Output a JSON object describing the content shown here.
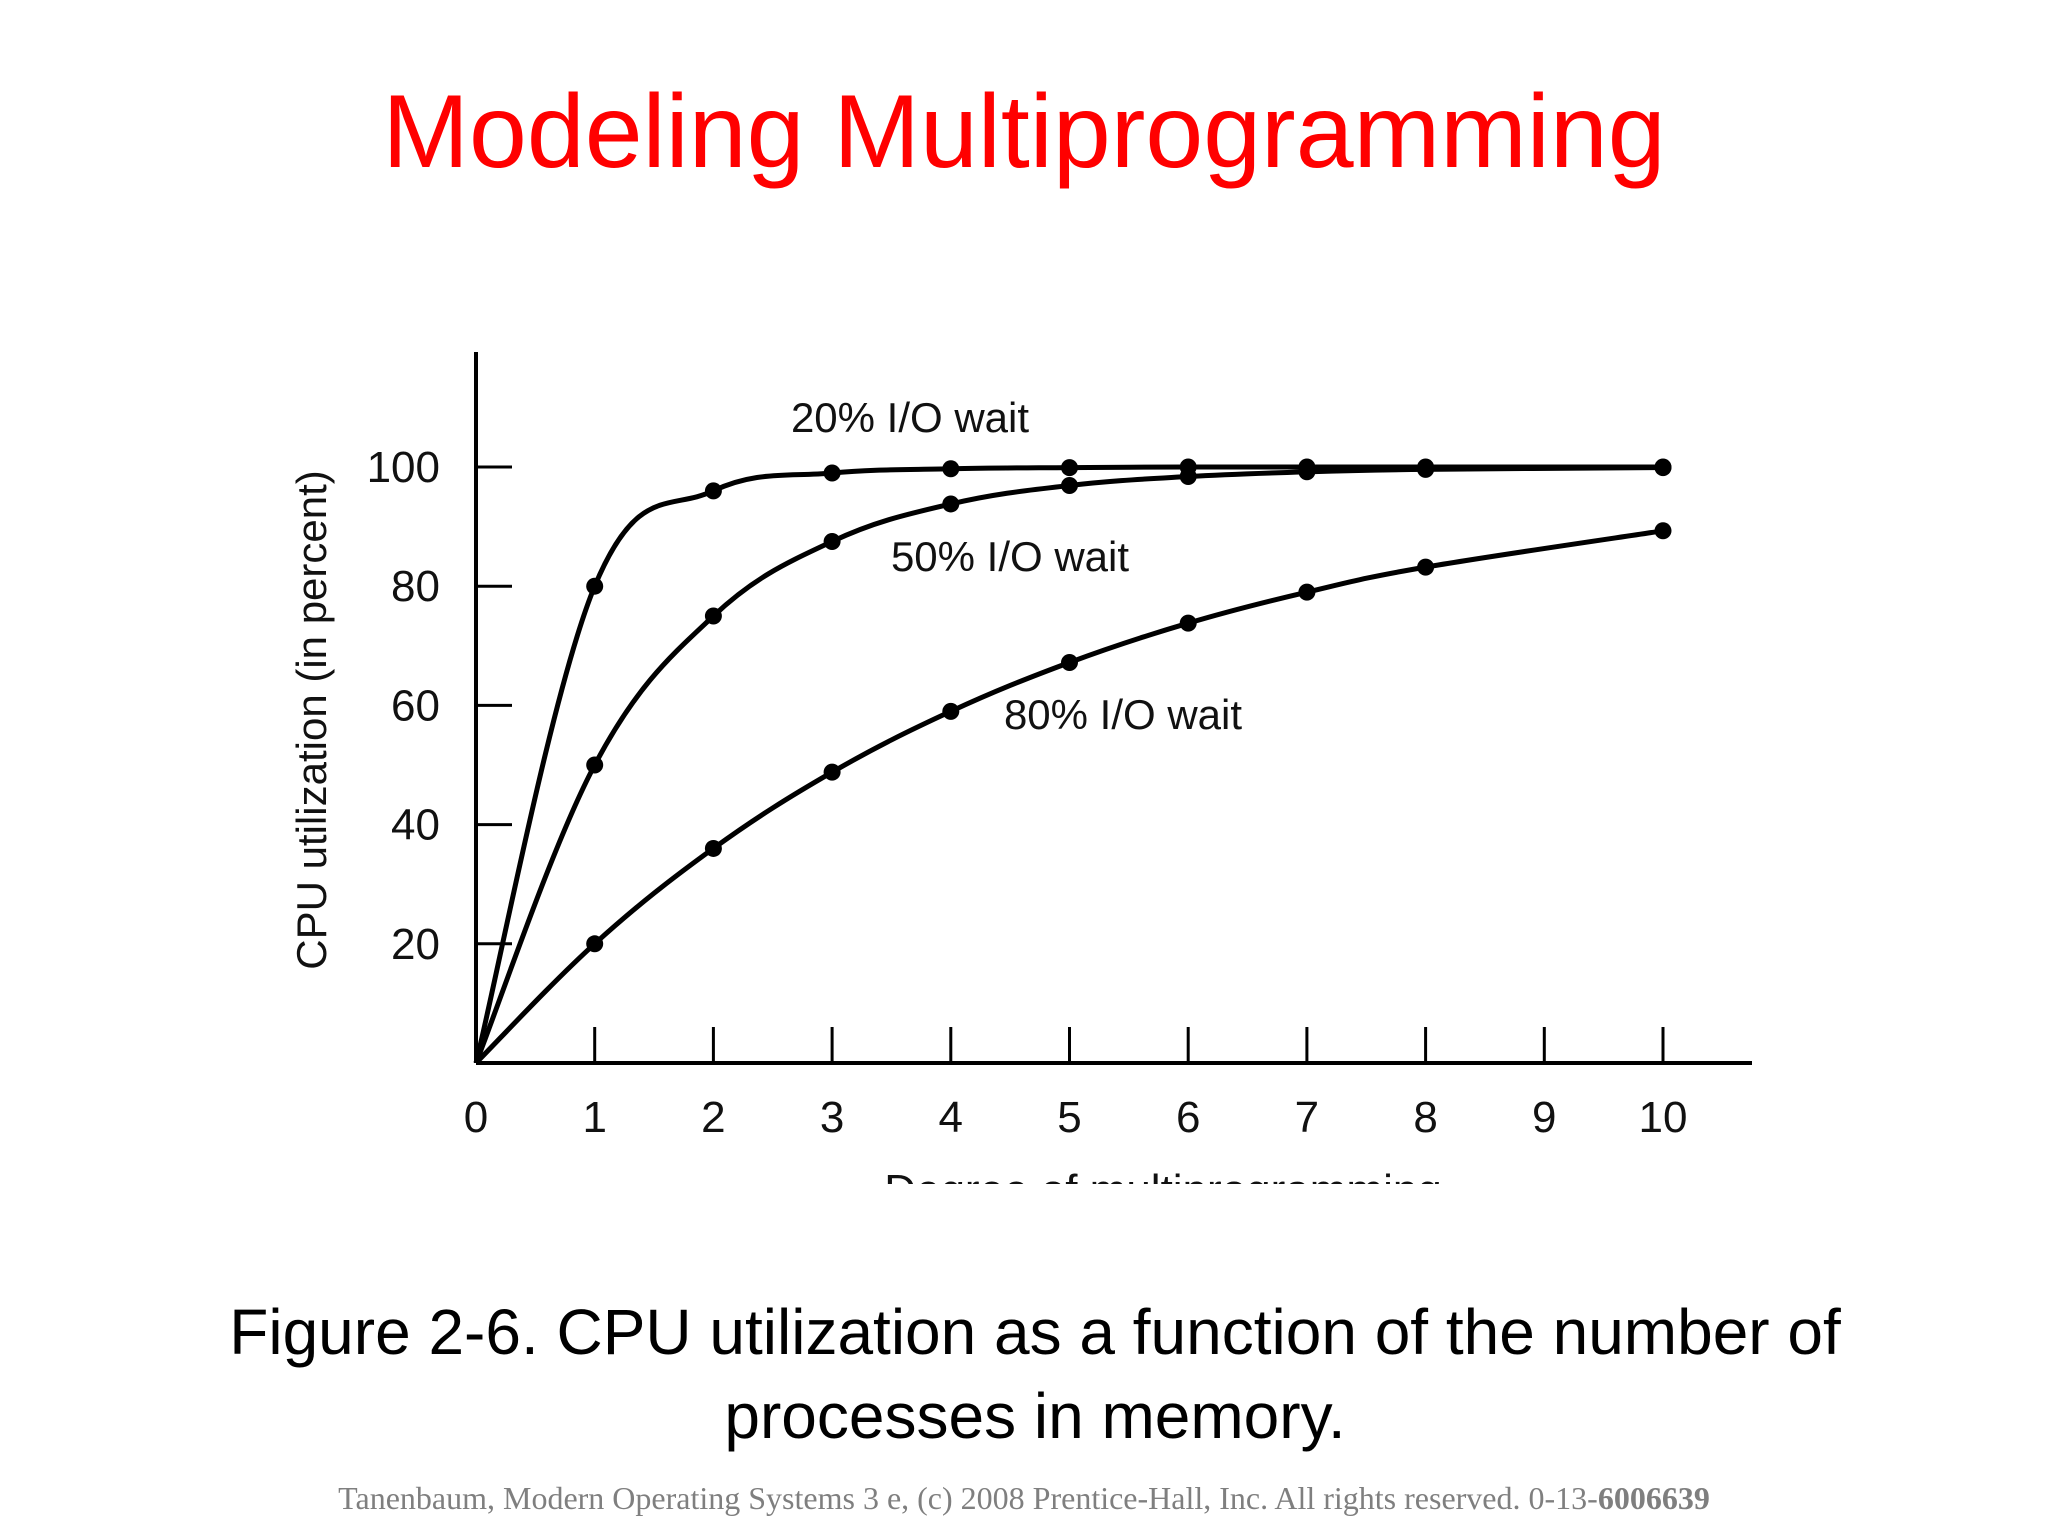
{
  "slide": {
    "title": "Modeling Multiprogramming",
    "caption_line1": "Figure 2-6. CPU utilization as a function of the number of",
    "caption_line2": "processes in memory.",
    "footer_text": "Tanenbaum, Modern Operating Systems 3 e, (c) 2008 Prentice-Hall, Inc. All rights reserved. 0-13-",
    "footer_bold": "6006639",
    "title_color": "#ff0000",
    "footer_color": "#7f7f7f"
  },
  "chart_data": {
    "type": "line",
    "title": "",
    "xlabel": "Degree of multiprogramming",
    "ylabel": "CPU utilization (in percent)",
    "xlim": [
      0,
      10
    ],
    "ylim": [
      0,
      100
    ],
    "x_ticks": [
      0,
      1,
      2,
      3,
      4,
      5,
      6,
      7,
      8,
      9,
      10
    ],
    "y_ticks": [
      20,
      40,
      60,
      80,
      100
    ],
    "grid": false,
    "legend": "inline labels",
    "series": [
      {
        "name": "20% I/O wait",
        "x": [
          0,
          1,
          2,
          3,
          4,
          5,
          6,
          7,
          8,
          10
        ],
        "y": [
          0,
          80,
          96,
          99,
          99.7,
          99.9,
          100,
          100,
          100,
          100
        ]
      },
      {
        "name": "50% I/O wait",
        "x": [
          0,
          1,
          2,
          3,
          4,
          5,
          6,
          7,
          8,
          10
        ],
        "y": [
          0,
          50,
          75,
          87.5,
          93.8,
          96.9,
          98.4,
          99.2,
          99.6,
          99.9
        ]
      },
      {
        "name": "80% I/O wait",
        "x": [
          0,
          1,
          2,
          3,
          4,
          5,
          6,
          7,
          8,
          10
        ],
        "y": [
          0,
          20,
          36,
          48.8,
          59,
          67.2,
          73.8,
          79,
          83.2,
          89.3
        ]
      }
    ]
  }
}
